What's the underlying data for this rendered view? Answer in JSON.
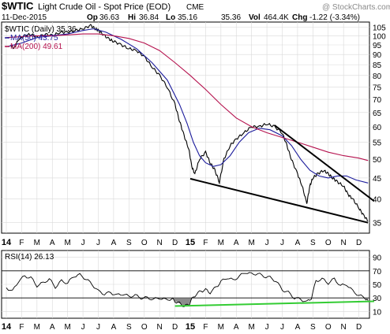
{
  "header": {
    "symbol": "$WTIC",
    "name": "Light Crude Oil - Spot Price (EOD)",
    "exchange": "CME",
    "watermark": "@ StockCharts.com",
    "date": "11-Dec-2015",
    "open_label": "Op",
    "open": "36.63",
    "high_label": "Hi",
    "high": "36.84",
    "low_label": "Lo",
    "low": "35.16",
    "last": "35.36",
    "vol_label": "Vol",
    "vol": "464.4K",
    "chg_label": "Chg",
    "chg": "-1.22 (-3.34%)"
  },
  "legend": {
    "series_label": "$WTIC (Daily) 35.36",
    "ma50_label": "MA(50) 43.75",
    "ma200_label": "MA(200) 49.61"
  },
  "rsi_label": "RSI(14) 26.13",
  "colors": {
    "price": "#000000",
    "ma50": "#1c1c9c",
    "ma200": "#b5124e",
    "trendline": "#000000",
    "rsi_trend": "#33cc33",
    "rsi_fill_oversold": "#8c8c8c",
    "grid": "#d9d9d9"
  },
  "chart_data": [
    {
      "type": "line",
      "panel": "price",
      "ylim": [
        33,
        108
      ],
      "y_scale": "log",
      "y_ticks": [
        35,
        40,
        45,
        50,
        55,
        60,
        65,
        70,
        75,
        80,
        85,
        90,
        95,
        100,
        105
      ],
      "x_range": [
        "2014-01",
        "2015-12"
      ],
      "x_tick_labels": [
        "14",
        "F",
        "M",
        "A",
        "M",
        "J",
        "J",
        "A",
        "S",
        "O",
        "N",
        "D",
        "15",
        "F",
        "M",
        "A",
        "M",
        "J",
        "J",
        "A",
        "S",
        "O",
        "N",
        "D"
      ],
      "grid": true,
      "series": [
        {
          "name": "$WTIC (Daily) 35.36",
          "style": "price",
          "points": [
            [
              0.3,
              95
            ],
            [
              0.5,
              93
            ],
            [
              0.8,
              98
            ],
            [
              1.2,
              100
            ],
            [
              1.6,
              101
            ],
            [
              2.0,
              99
            ],
            [
              2.5,
              101
            ],
            [
              3.0,
              100
            ],
            [
              3.5,
              102
            ],
            [
              4.0,
              102
            ],
            [
              4.5,
              103
            ],
            [
              5.0,
              104
            ],
            [
              5.5,
              106
            ],
            [
              5.8,
              104
            ],
            [
              6.0,
              103
            ],
            [
              6.3,
              101
            ],
            [
              6.7,
              98
            ],
            [
              7.0,
              97
            ],
            [
              7.5,
              95
            ],
            [
              8.0,
              93
            ],
            [
              8.5,
              92
            ],
            [
              9.0,
              89
            ],
            [
              9.5,
              84
            ],
            [
              10.0,
              80
            ],
            [
              10.5,
              75
            ],
            [
              11.0,
              68
            ],
            [
              11.3,
              62
            ],
            [
              11.6,
              57
            ],
            [
              11.9,
              53
            ],
            [
              12.1,
              48
            ],
            [
              12.3,
              46
            ],
            [
              12.6,
              50
            ],
            [
              13.0,
              52
            ],
            [
              13.3,
              49
            ],
            [
              13.6,
              47
            ],
            [
              13.9,
              44
            ],
            [
              14.2,
              50
            ],
            [
              14.6,
              54
            ],
            [
              15.0,
              56
            ],
            [
              15.5,
              58
            ],
            [
              16.0,
              60
            ],
            [
              16.5,
              60
            ],
            [
              17.0,
              61
            ],
            [
              17.5,
              60
            ],
            [
              18.0,
              58
            ],
            [
              18.3,
              54
            ],
            [
              18.6,
              50
            ],
            [
              19.0,
              46
            ],
            [
              19.3,
              43
            ],
            [
              19.6,
              39
            ],
            [
              19.8,
              43
            ],
            [
              20.0,
              45
            ],
            [
              20.3,
              46
            ],
            [
              20.7,
              47
            ],
            [
              21.0,
              46
            ],
            [
              21.3,
              45
            ],
            [
              21.6,
              44
            ],
            [
              22.0,
              43
            ],
            [
              22.3,
              41
            ],
            [
              22.6,
              40
            ],
            [
              23.0,
              38
            ],
            [
              23.3,
              36.5
            ],
            [
              23.6,
              35.36
            ]
          ]
        },
        {
          "name": "MA(50) 43.75",
          "style": "ma50",
          "points": [
            [
              0.0,
              94
            ],
            [
              1.0,
              96
            ],
            [
              2.0,
              99
            ],
            [
              3.0,
              100
            ],
            [
              4.0,
              101
            ],
            [
              5.0,
              103
            ],
            [
              5.7,
              104
            ],
            [
              6.5,
              102
            ],
            [
              7.5,
              98
            ],
            [
              8.5,
              93
            ],
            [
              9.5,
              86
            ],
            [
              10.5,
              78
            ],
            [
              11.3,
              68
            ],
            [
              11.8,
              61
            ],
            [
              12.2,
              55
            ],
            [
              12.6,
              51
            ],
            [
              13.0,
              49
            ],
            [
              13.5,
              48
            ],
            [
              14.0,
              48.5
            ],
            [
              14.6,
              51
            ],
            [
              15.2,
              55
            ],
            [
              15.8,
              58
            ],
            [
              16.5,
              59.5
            ],
            [
              17.2,
              59
            ],
            [
              18.0,
              57
            ],
            [
              18.6,
              54
            ],
            [
              19.2,
              50
            ],
            [
              19.8,
              47
            ],
            [
              20.4,
              45.5
            ],
            [
              21.0,
              45
            ],
            [
              21.6,
              45.5
            ],
            [
              22.2,
              45.5
            ],
            [
              22.8,
              44.5
            ],
            [
              23.6,
              43.75
            ]
          ]
        },
        {
          "name": "MA(200) 49.61",
          "style": "ma200",
          "points": [
            [
              0.0,
              99
            ],
            [
              1.0,
              99.5
            ],
            [
              2.0,
              100
            ],
            [
              3.0,
              100
            ],
            [
              4.0,
              100.5
            ],
            [
              5.0,
              101
            ],
            [
              6.0,
              101
            ],
            [
              7.0,
              100
            ],
            [
              8.0,
              98.5
            ],
            [
              9.0,
              96
            ],
            [
              10.0,
              92
            ],
            [
              11.0,
              86
            ],
            [
              12.0,
              80
            ],
            [
              13.0,
              74
            ],
            [
              14.0,
              68
            ],
            [
              15.0,
              63
            ],
            [
              16.0,
              60
            ],
            [
              17.0,
              58
            ],
            [
              18.0,
              56.5
            ],
            [
              19.0,
              55
            ],
            [
              20.0,
              53.5
            ],
            [
              21.0,
              52
            ],
            [
              22.0,
              51
            ],
            [
              23.0,
              50.3
            ],
            [
              23.6,
              49.61
            ]
          ]
        },
        {
          "name": "",
          "style": "trend",
          "points": [
            [
              12.0,
              44.8
            ],
            [
              23.6,
              35.0
            ]
          ]
        },
        {
          "name": "",
          "style": "trend",
          "points": [
            [
              17.5,
              60.5
            ],
            [
              24.0,
              39.5
            ]
          ]
        }
      ]
    },
    {
      "type": "line",
      "panel": "rsi",
      "ylim": [
        0,
        100
      ],
      "y_ticks": [
        10,
        30,
        50,
        70,
        90
      ],
      "reference_lines": [
        30,
        70
      ],
      "x_tick_labels": [
        "14",
        "F",
        "M",
        "A",
        "M",
        "J",
        "J",
        "A",
        "S",
        "O",
        "N",
        "D",
        "15",
        "F",
        "M",
        "A",
        "M",
        "J",
        "J",
        "A",
        "S",
        "O",
        "N",
        "D"
      ],
      "series": [
        {
          "name": "RSI(14) 26.13",
          "style": "rsi",
          "points": [
            [
              0.0,
              45
            ],
            [
              0.4,
              40
            ],
            [
              0.8,
              55
            ],
            [
              1.2,
              62
            ],
            [
              1.6,
              60
            ],
            [
              2.0,
              48
            ],
            [
              2.4,
              52
            ],
            [
              2.8,
              58
            ],
            [
              3.2,
              46
            ],
            [
              3.6,
              55
            ],
            [
              4.0,
              52
            ],
            [
              4.4,
              62
            ],
            [
              4.8,
              64
            ],
            [
              5.2,
              58
            ],
            [
              5.6,
              50
            ],
            [
              6.0,
              40
            ],
            [
              6.4,
              36
            ],
            [
              6.8,
              38
            ],
            [
              7.2,
              34
            ],
            [
              7.6,
              36
            ],
            [
              8.0,
              32
            ],
            [
              8.4,
              34
            ],
            [
              8.8,
              30
            ],
            [
              9.2,
              30
            ],
            [
              9.6,
              28
            ],
            [
              10.0,
              30
            ],
            [
              10.4,
              27
            ],
            [
              10.8,
              29
            ],
            [
              11.0,
              25
            ],
            [
              11.3,
              22
            ],
            [
              11.6,
              18
            ],
            [
              11.9,
              20
            ],
            [
              12.1,
              28
            ],
            [
              12.4,
              36
            ],
            [
              12.7,
              40
            ],
            [
              13.0,
              42
            ],
            [
              13.3,
              38
            ],
            [
              13.7,
              46
            ],
            [
              14.0,
              54
            ],
            [
              14.4,
              60
            ],
            [
              14.8,
              56
            ],
            [
              15.2,
              62
            ],
            [
              15.6,
              68
            ],
            [
              16.0,
              65
            ],
            [
              16.4,
              66
            ],
            [
              16.8,
              62
            ],
            [
              17.2,
              60
            ],
            [
              17.6,
              55
            ],
            [
              18.0,
              42
            ],
            [
              18.4,
              38
            ],
            [
              18.8,
              30
            ],
            [
              19.2,
              28
            ],
            [
              19.6,
              24
            ],
            [
              19.9,
              30
            ],
            [
              20.2,
              55
            ],
            [
              20.6,
              58
            ],
            [
              21.0,
              52
            ],
            [
              21.4,
              58
            ],
            [
              21.8,
              48
            ],
            [
              22.2,
              50
            ],
            [
              22.6,
              40
            ],
            [
              23.0,
              34
            ],
            [
              23.4,
              30
            ],
            [
              23.6,
              26.13
            ]
          ]
        },
        {
          "name": "",
          "style": "rsi-trend",
          "points": [
            [
              11.0,
              18
            ],
            [
              24.0,
              25
            ]
          ]
        }
      ]
    }
  ]
}
